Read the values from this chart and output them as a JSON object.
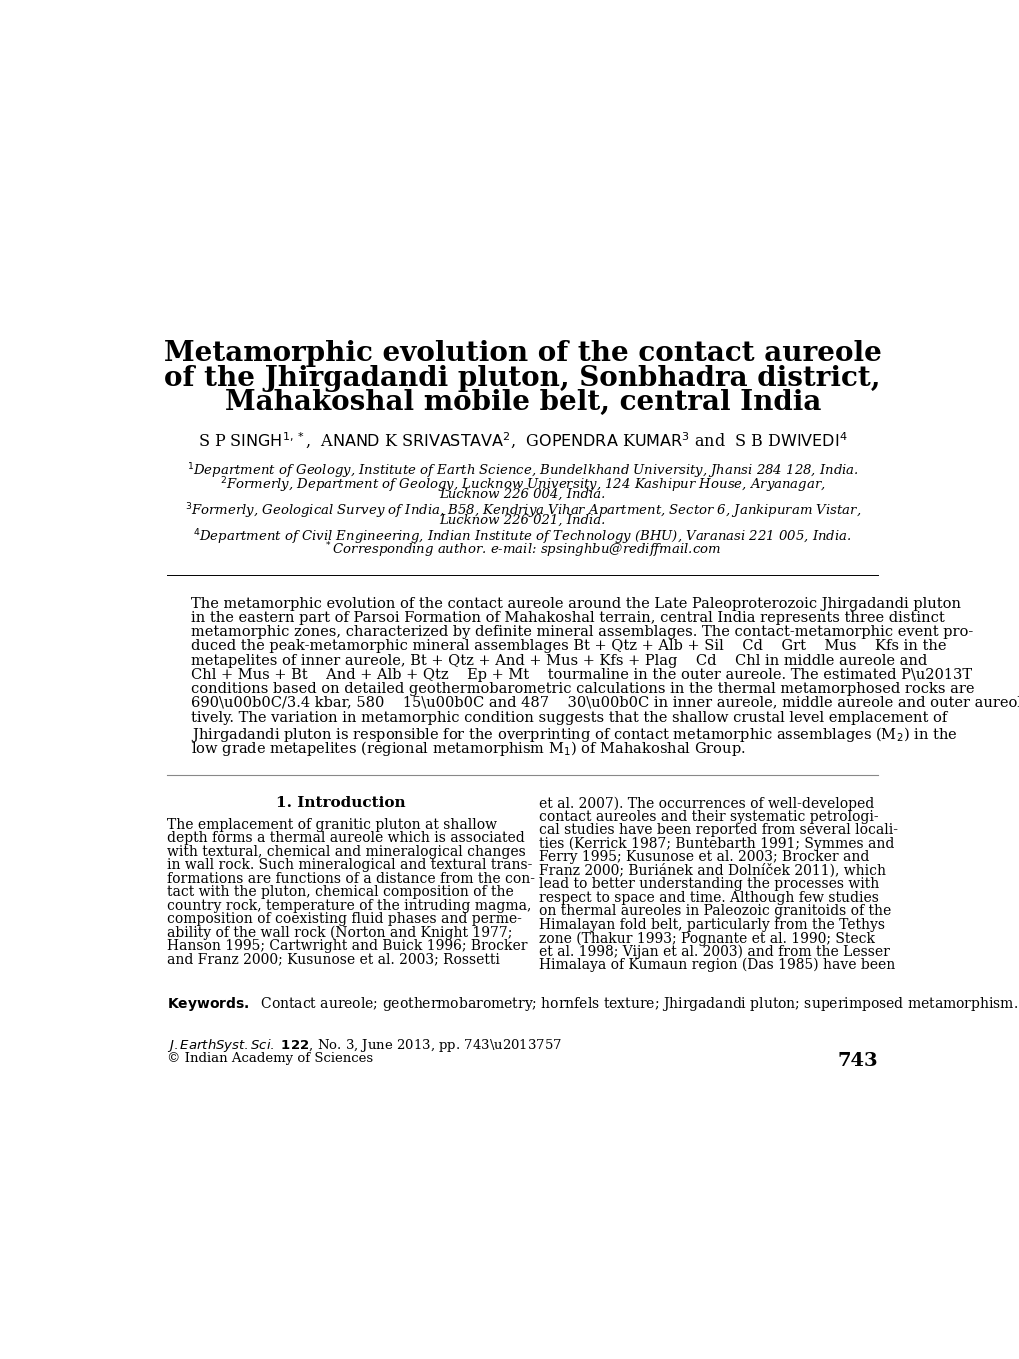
{
  "title_line1": "Metamorphic evolution of the contact aureole",
  "title_line2": "of the Jhirgadandi pluton, Sonbhadra district,",
  "title_line3": "Mahakoshal mobile belt, central India",
  "background_color": "#ffffff",
  "text_color": "#000000",
  "link_color": "#3333aa"
}
